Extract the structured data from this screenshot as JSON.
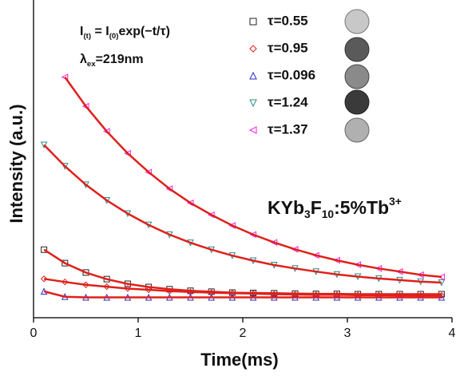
{
  "chart_data": {
    "type": "scatter",
    "xlabel": "Time(ms)",
    "ylabel": "Intensity (a.u.)",
    "xlim": [
      0,
      4
    ],
    "xticks": [
      0,
      1,
      2,
      3,
      4
    ],
    "ylim": [
      0,
      100
    ],
    "fit_color": "#e0201b",
    "formula": [
      {
        "text": "I"
      },
      {
        "text": "(t)",
        "sub": true
      },
      {
        "text": " = I"
      },
      {
        "text": "(0)",
        "sub": true
      },
      {
        "text": "exp(−t/τ)"
      }
    ],
    "excitation": [
      {
        "text": "λ"
      },
      {
        "text": "ex",
        "sub": true
      },
      {
        "text": "=219nm"
      }
    ],
    "sample": [
      {
        "text": "KYb"
      },
      {
        "text": "3",
        "sub": true
      },
      {
        "text": "F"
      },
      {
        "text": "10",
        "sub": true
      },
      {
        "text": ":5%Tb"
      },
      {
        "text": "3+",
        "sup": true
      }
    ],
    "x": [
      0.1,
      0.3,
      0.5,
      0.7,
      0.9,
      1.1,
      1.3,
      1.5,
      1.7,
      1.9,
      2.1,
      2.3,
      2.5,
      2.7,
      2.9,
      3.1,
      3.3,
      3.5,
      3.7,
      3.9
    ],
    "series": [
      {
        "name": "τ=0.55",
        "color": "#222222",
        "marker": "square",
        "values": [
          21.7,
          17.4,
          14.4,
          12.3,
          10.8,
          9.8,
          9.1,
          8.6,
          8.3,
          8.0,
          7.9,
          7.8,
          7.7,
          7.6,
          7.6,
          7.5,
          7.5,
          7.5,
          7.5,
          7.5
        ]
      },
      {
        "name": "τ=0.95",
        "color": "#e0201b",
        "marker": "diamond",
        "values": [
          12.4,
          11.4,
          10.5,
          9.9,
          9.3,
          8.9,
          8.5,
          8.2,
          8.0,
          7.8,
          7.7,
          7.5,
          7.4,
          7.3,
          7.3,
          7.2,
          7.2,
          7.1,
          7.1,
          7.1
        ]
      },
      {
        "name": "τ=0.096",
        "color": "#2a2ad0",
        "marker": "triangle",
        "values": [
          8.4,
          6.7,
          6.5,
          6.5,
          6.5,
          6.5,
          6.5,
          6.5,
          6.5,
          6.5,
          6.5,
          6.5,
          6.5,
          6.5,
          6.5,
          6.5,
          6.5,
          6.5,
          6.5,
          6.5
        ]
      },
      {
        "name": "τ=1.24",
        "color": "#2a8a8a",
        "marker": "triangle-down",
        "values": [
          55.1,
          48.3,
          42.4,
          37.4,
          33.2,
          29.6,
          26.5,
          23.9,
          21.7,
          19.8,
          18.2,
          16.8,
          15.7,
          14.7,
          13.8,
          13.1,
          12.5,
          12.0,
          11.5,
          11.2
        ]
      },
      {
        "name": "τ=1.37",
        "color": "#f020e0",
        "marker": "triangle-left",
        "values": [
          null,
          76.7,
          67.4,
          59.4,
          52.4,
          46.4,
          41.1,
          36.6,
          32.8,
          29.4,
          26.5,
          24.0,
          21.8,
          19.9,
          18.3,
          16.9,
          15.7,
          14.7,
          13.7,
          13.0
        ]
      }
    ]
  }
}
